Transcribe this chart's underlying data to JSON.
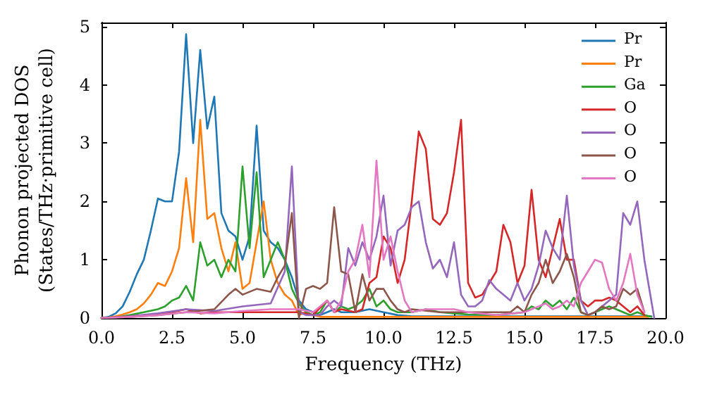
{
  "chart_data": {
    "type": "line",
    "xlabel": "Frequency (THz)",
    "ylabel": "Phonon projected DOS\n(States/THz·primitive cell)",
    "xlim": [
      0,
      20
    ],
    "ylim": [
      0,
      5.07
    ],
    "xticks": [
      {
        "value": 0,
        "label": "0.0"
      },
      {
        "value": 2.5,
        "label": "2.5"
      },
      {
        "value": 5,
        "label": "5.0"
      },
      {
        "value": 7.5,
        "label": "7.5"
      },
      {
        "value": 10,
        "label": "10.0"
      },
      {
        "value": 12.5,
        "label": "12.5"
      },
      {
        "value": 15,
        "label": "15.0"
      },
      {
        "value": 17.5,
        "label": "17.5"
      },
      {
        "value": 20,
        "label": "20.0"
      }
    ],
    "yticks": [
      0,
      1,
      2,
      3,
      4,
      5
    ],
    "grid": false,
    "legend": "top right",
    "marker": "none",
    "line_style": "solid",
    "series": [
      {
        "name": "Pr",
        "color": "#1f77b4",
        "x": [
          0,
          0.25,
          0.5,
          0.75,
          1,
          1.25,
          1.5,
          1.75,
          2,
          2.25,
          2.5,
          2.75,
          3,
          3.25,
          3.5,
          3.75,
          4,
          4.25,
          4.5,
          4.75,
          5,
          5.25,
          5.5,
          5.75,
          6,
          6.25,
          6.5,
          6.75,
          7,
          7.25,
          7.5,
          7.75,
          8,
          8.25,
          8.5,
          9,
          9.5,
          10,
          10.5,
          11,
          13,
          15,
          17,
          19.5
        ],
        "values": [
          0,
          0.02,
          0.08,
          0.2,
          0.45,
          0.75,
          1.0,
          1.5,
          2.05,
          2.0,
          2.0,
          2.85,
          4.87,
          3.0,
          4.6,
          3.25,
          3.8,
          1.8,
          1.5,
          1.4,
          1.0,
          1.4,
          3.3,
          1.5,
          1.3,
          1.2,
          1.0,
          0.7,
          0.3,
          0.15,
          0.1,
          0.05,
          0.1,
          0.15,
          0.1,
          0.1,
          0.15,
          0.1,
          0.05,
          0.03,
          0.03,
          0.03,
          0.03,
          0.03
        ]
      },
      {
        "name": "Pr",
        "color": "#ff7f0e",
        "x": [
          0,
          0.25,
          0.5,
          0.75,
          1,
          1.25,
          1.5,
          1.75,
          2,
          2.25,
          2.5,
          2.75,
          3,
          3.25,
          3.5,
          3.75,
          4,
          4.25,
          4.5,
          4.75,
          5,
          5.25,
          5.5,
          5.75,
          6,
          6.25,
          6.5,
          6.75,
          7,
          7.25,
          7.5,
          7.75,
          10,
          15,
          19.4
        ],
        "values": [
          0,
          0.01,
          0.03,
          0.06,
          0.1,
          0.15,
          0.25,
          0.4,
          0.6,
          0.55,
          0.8,
          1.2,
          2.4,
          1.3,
          3.4,
          1.7,
          1.8,
          1.2,
          0.8,
          1.3,
          0.5,
          0.6,
          1.3,
          2.0,
          1.0,
          0.6,
          0.4,
          0.3,
          0.05,
          0.1,
          0.05,
          0.02,
          0.02,
          0.02,
          0.02
        ]
      },
      {
        "name": "Ga",
        "color": "#2ca02c",
        "x": [
          0,
          0.5,
          1,
          1.5,
          2,
          2.25,
          2.5,
          2.75,
          3,
          3.25,
          3.5,
          3.75,
          4,
          4.25,
          4.5,
          4.75,
          5,
          5.25,
          5.5,
          5.75,
          6,
          6.25,
          6.5,
          6.75,
          7,
          7.25,
          7.5,
          7.75,
          8,
          8.25,
          8.5,
          8.75,
          9,
          9.25,
          9.5,
          9.75,
          10,
          10.25,
          10.5,
          11,
          11.5,
          12,
          12.5,
          13,
          14,
          15,
          15.25,
          15.5,
          15.75,
          16,
          16.25,
          16.5,
          16.75,
          17,
          17.25,
          17.5,
          17.75,
          18,
          18.25,
          18.5,
          18.75,
          19,
          19.25,
          19.5
        ],
        "values": [
          0,
          0.01,
          0.05,
          0.1,
          0.15,
          0.2,
          0.3,
          0.35,
          0.55,
          0.3,
          1.3,
          0.9,
          1.0,
          0.7,
          1.0,
          0.8,
          2.6,
          1.2,
          2.5,
          0.7,
          1.0,
          1.3,
          1.0,
          0.5,
          0.25,
          0.1,
          0.05,
          0.1,
          0.3,
          0.1,
          0.2,
          0.15,
          0.2,
          0.3,
          0.5,
          0.2,
          0.3,
          0.15,
          0.1,
          0.1,
          0.15,
          0.1,
          0.08,
          0.06,
          0.05,
          0.1,
          0.2,
          0.15,
          0.3,
          0.2,
          0.3,
          0.15,
          0.35,
          0.1,
          0.05,
          0.1,
          0.15,
          0.2,
          0.15,
          0.1,
          0.05,
          0.1,
          0.05,
          0.02
        ]
      },
      {
        "name": "O",
        "color": "#d62728",
        "x": [
          0,
          1,
          2,
          3,
          3.5,
          4,
          5,
          6,
          7,
          7.5,
          8,
          8.25,
          8.5,
          9,
          9.25,
          9.5,
          9.75,
          10,
          10.25,
          10.5,
          10.75,
          11,
          11.25,
          11.5,
          11.75,
          12,
          12.25,
          12.5,
          12.75,
          13,
          13.25,
          13.5,
          13.75,
          14,
          14.25,
          14.5,
          14.75,
          15,
          15.25,
          15.5,
          15.75,
          16,
          16.25,
          16.5,
          16.75,
          17,
          17.25,
          17.5,
          17.75,
          18,
          18.25,
          18.5,
          18.75,
          19,
          19.25
        ],
        "values": [
          0,
          0.03,
          0.06,
          0.15,
          0.08,
          0.1,
          0.1,
          0.1,
          0.1,
          0.05,
          0.3,
          0.1,
          0.15,
          0.1,
          0.15,
          0.6,
          0.7,
          1.4,
          1.2,
          0.6,
          1.0,
          2.0,
          3.2,
          2.9,
          1.7,
          1.6,
          1.8,
          2.5,
          3.4,
          0.6,
          0.35,
          0.4,
          0.6,
          0.8,
          1.6,
          1.3,
          0.6,
          0.9,
          2.2,
          1.0,
          0.7,
          1.2,
          1.7,
          1.0,
          1.0,
          0.3,
          0.2,
          0.3,
          0.3,
          0.35,
          0.3,
          0.2,
          0.1,
          0.2,
          0.05
        ]
      },
      {
        "name": "O",
        "color": "#9467bd",
        "x": [
          0,
          1,
          2,
          3,
          4,
          5,
          6,
          6.5,
          6.75,
          7,
          7.25,
          7.75,
          8,
          8.25,
          8.5,
          8.75,
          9,
          9.25,
          9.5,
          9.75,
          10,
          10.25,
          10.5,
          10.75,
          11,
          11.25,
          11.5,
          11.75,
          12,
          12.25,
          12.5,
          12.75,
          13,
          13.25,
          13.5,
          13.75,
          14,
          14.25,
          14.5,
          14.75,
          15,
          15.25,
          15.5,
          15.75,
          16,
          16.25,
          16.5,
          16.75,
          17,
          17.25,
          17.5,
          17.75,
          18,
          18.25,
          18.5,
          18.75,
          19,
          19.25,
          19.6
        ],
        "values": [
          0,
          0.03,
          0.08,
          0.15,
          0.12,
          0.2,
          0.25,
          0.8,
          2.6,
          0.1,
          0.05,
          0.05,
          0.2,
          0.3,
          0.2,
          1.2,
          0.9,
          1.3,
          1.0,
          1.4,
          2.1,
          0.9,
          1.5,
          1.6,
          1.9,
          2.0,
          1.3,
          0.85,
          1.0,
          0.7,
          1.3,
          0.4,
          0.2,
          0.2,
          0.3,
          0.65,
          0.5,
          0.4,
          0.3,
          0.6,
          0.3,
          0.5,
          0.9,
          1.5,
          1.2,
          1.0,
          2.1,
          0.9,
          0.3,
          0.05,
          0.1,
          0.2,
          0.3,
          0.4,
          1.8,
          1.6,
          2.0,
          1.0,
          0
        ]
      },
      {
        "name": "O",
        "color": "#8c564b",
        "x": [
          0,
          1,
          2,
          3,
          4,
          4.5,
          4.75,
          5,
          5.5,
          6,
          6.25,
          6.5,
          6.75,
          7,
          7.25,
          7.5,
          7.75,
          8,
          8.25,
          8.5,
          8.75,
          9,
          9.25,
          9.5,
          9.75,
          10,
          10.25,
          10.5,
          10.75,
          11,
          12,
          13,
          14,
          14.5,
          14.75,
          15,
          15.25,
          15.5,
          15.75,
          16,
          16.25,
          16.5,
          16.75,
          17,
          17.25,
          17.5,
          17.75,
          18,
          18.25,
          18.5,
          18.75,
          19,
          19.25
        ],
        "values": [
          0,
          0.02,
          0.05,
          0.1,
          0.15,
          0.4,
          0.5,
          0.4,
          0.5,
          0.45,
          0.7,
          0.9,
          1.8,
          0,
          0.5,
          0.55,
          0.5,
          0.6,
          1.9,
          0.8,
          0.75,
          0.1,
          0.75,
          0.3,
          0.5,
          0.5,
          0.3,
          0.15,
          0.1,
          0.15,
          0.1,
          0.1,
          0.1,
          0.1,
          0.2,
          0.1,
          0.4,
          0.6,
          1.0,
          0.6,
          0.8,
          1.1,
          0.7,
          0.1,
          0.05,
          0.1,
          0.2,
          0.15,
          0.2,
          0.5,
          0.4,
          0.5,
          0.1
        ]
      },
      {
        "name": "O",
        "color": "#e377c2",
        "x": [
          0,
          1,
          2,
          3,
          4,
          5,
          6,
          7,
          7.5,
          8,
          8.25,
          8.5,
          8.75,
          9,
          9.25,
          9.5,
          9.75,
          10,
          10.25,
          10.5,
          10.75,
          11,
          11.5,
          12,
          12.5,
          13,
          14,
          15,
          15.5,
          15.75,
          16,
          16.25,
          16.5,
          16.75,
          17,
          17.25,
          17.5,
          17.75,
          18,
          18.25,
          18.5,
          18.75,
          19,
          19.25
        ],
        "values": [
          0,
          0.02,
          0.05,
          0.1,
          0.08,
          0.12,
          0.15,
          0.15,
          0.1,
          0.3,
          0.1,
          0.3,
          0.8,
          1.0,
          1.6,
          0.7,
          2.7,
          1.0,
          1.4,
          0.8,
          0.3,
          0.1,
          0.15,
          0.15,
          0.15,
          0.1,
          0.05,
          0.1,
          0.2,
          0.25,
          0.15,
          0.2,
          0.3,
          0.2,
          0.6,
          0.8,
          1.0,
          0.95,
          0.5,
          0.3,
          0.6,
          1.1,
          0.4,
          0.1
        ]
      }
    ]
  }
}
